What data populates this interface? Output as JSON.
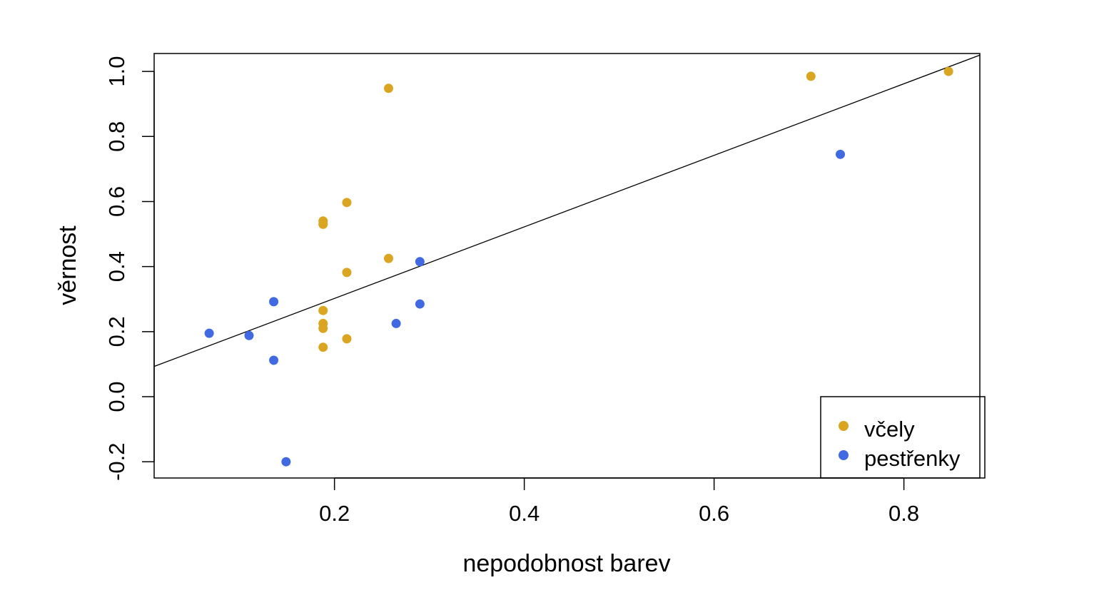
{
  "chart_data": {
    "type": "scatter",
    "xlabel": "nepodobnost barev",
    "ylabel": "věrnost",
    "xlim": [
      0.01,
      0.88
    ],
    "ylim": [
      -0.25,
      1.055
    ],
    "x_ticks": [
      {
        "value": 0.2,
        "label": "0.2"
      },
      {
        "value": 0.4,
        "label": "0.4"
      },
      {
        "value": 0.6,
        "label": "0.6"
      },
      {
        "value": 0.8,
        "label": "0.8"
      }
    ],
    "y_ticks": [
      {
        "value": -0.2,
        "label": "-0.2"
      },
      {
        "value": 0.0,
        "label": "0.0"
      },
      {
        "value": 0.2,
        "label": "0.2"
      },
      {
        "value": 0.4,
        "label": "0.4"
      },
      {
        "value": 0.6,
        "label": "0.6"
      },
      {
        "value": 0.8,
        "label": "0.8"
      },
      {
        "value": 1.0,
        "label": "1.0"
      }
    ],
    "grid": false,
    "legend_position": "bottom-right",
    "series": [
      {
        "name": "včely",
        "color": "#DAA520",
        "points": [
          {
            "x": 0.188,
            "y": 0.54
          },
          {
            "x": 0.188,
            "y": 0.53
          },
          {
            "x": 0.188,
            "y": 0.265
          },
          {
            "x": 0.188,
            "y": 0.225
          },
          {
            "x": 0.188,
            "y": 0.21
          },
          {
            "x": 0.188,
            "y": 0.152
          },
          {
            "x": 0.213,
            "y": 0.597
          },
          {
            "x": 0.213,
            "y": 0.382
          },
          {
            "x": 0.213,
            "y": 0.178
          },
          {
            "x": 0.257,
            "y": 0.948
          },
          {
            "x": 0.257,
            "y": 0.425
          },
          {
            "x": 0.702,
            "y": 0.985
          },
          {
            "x": 0.847,
            "y": 1.0
          }
        ]
      },
      {
        "name": "pestřenky",
        "color": "#4169E1",
        "points": [
          {
            "x": 0.068,
            "y": 0.195
          },
          {
            "x": 0.11,
            "y": 0.188
          },
          {
            "x": 0.136,
            "y": 0.292
          },
          {
            "x": 0.136,
            "y": 0.112
          },
          {
            "x": 0.149,
            "y": -0.2
          },
          {
            "x": 0.265,
            "y": 0.225
          },
          {
            "x": 0.29,
            "y": 0.415
          },
          {
            "x": 0.29,
            "y": 0.285
          },
          {
            "x": 0.733,
            "y": 0.745
          }
        ]
      }
    ],
    "regression_line": {
      "intercept": 0.082,
      "slope": 1.1,
      "color": "#000000"
    }
  }
}
